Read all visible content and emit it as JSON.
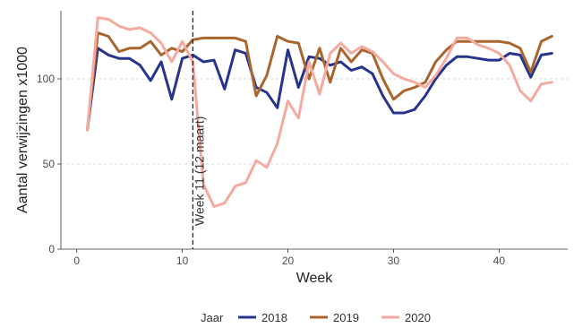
{
  "chart_data": {
    "type": "line",
    "xlabel": "Week",
    "ylabel": "Aantal verwijzingen x1000",
    "xlim": [
      -1.5,
      46.5
    ],
    "ylim": [
      0,
      140
    ],
    "xticks": [
      0,
      10,
      20,
      30,
      40
    ],
    "yticks": [
      0,
      50,
      100
    ],
    "grid": "horizontal dashed",
    "legend": {
      "placement": "bottom",
      "title": "Jaar"
    },
    "annotation": {
      "x": 11,
      "label": "Week 11 (12 maart)"
    },
    "x": [
      1,
      2,
      3,
      4,
      5,
      6,
      7,
      8,
      9,
      10,
      11,
      12,
      13,
      14,
      15,
      16,
      17,
      18,
      19,
      20,
      21,
      22,
      23,
      24,
      25,
      26,
      27,
      28,
      29,
      30,
      31,
      32,
      33,
      34,
      35,
      36,
      37,
      38,
      39,
      40,
      41,
      42,
      43,
      44,
      45
    ],
    "series": [
      {
        "name": "2018",
        "color": "#27348b",
        "values": [
          70,
          118,
          114,
          112,
          112,
          108,
          99,
          110,
          88,
          112,
          114,
          110,
          111,
          94,
          117,
          115,
          95,
          92,
          83,
          117,
          95,
          113,
          112,
          108,
          110,
          105,
          107,
          103,
          90,
          80,
          80,
          82,
          90,
          100,
          108,
          113,
          113,
          112,
          111,
          111,
          115,
          114,
          101,
          114,
          115
        ]
      },
      {
        "name": "2019",
        "color": "#a9652e",
        "values": [
          70,
          127,
          125,
          116,
          118,
          118,
          122,
          114,
          118,
          116,
          123,
          124,
          124,
          124,
          124,
          122,
          90,
          102,
          125,
          122,
          121,
          100,
          118,
          98,
          118,
          110,
          117,
          115,
          100,
          88,
          93,
          95,
          98,
          110,
          117,
          122,
          122,
          122,
          122,
          122,
          121,
          118,
          104,
          122,
          125
        ]
      },
      {
        "name": "2020",
        "color": "#f5aaa0",
        "values": [
          70,
          136,
          135,
          131,
          129,
          130,
          127,
          121,
          110,
          122,
          110,
          38,
          25,
          27,
          37,
          39,
          52,
          48,
          62,
          87,
          77,
          110,
          91,
          115,
          121,
          115,
          119,
          116,
          110,
          103,
          100,
          98,
          95,
          102,
          112,
          124,
          124,
          120,
          118,
          115,
          108,
          93,
          87,
          97,
          98
        ]
      }
    ]
  }
}
